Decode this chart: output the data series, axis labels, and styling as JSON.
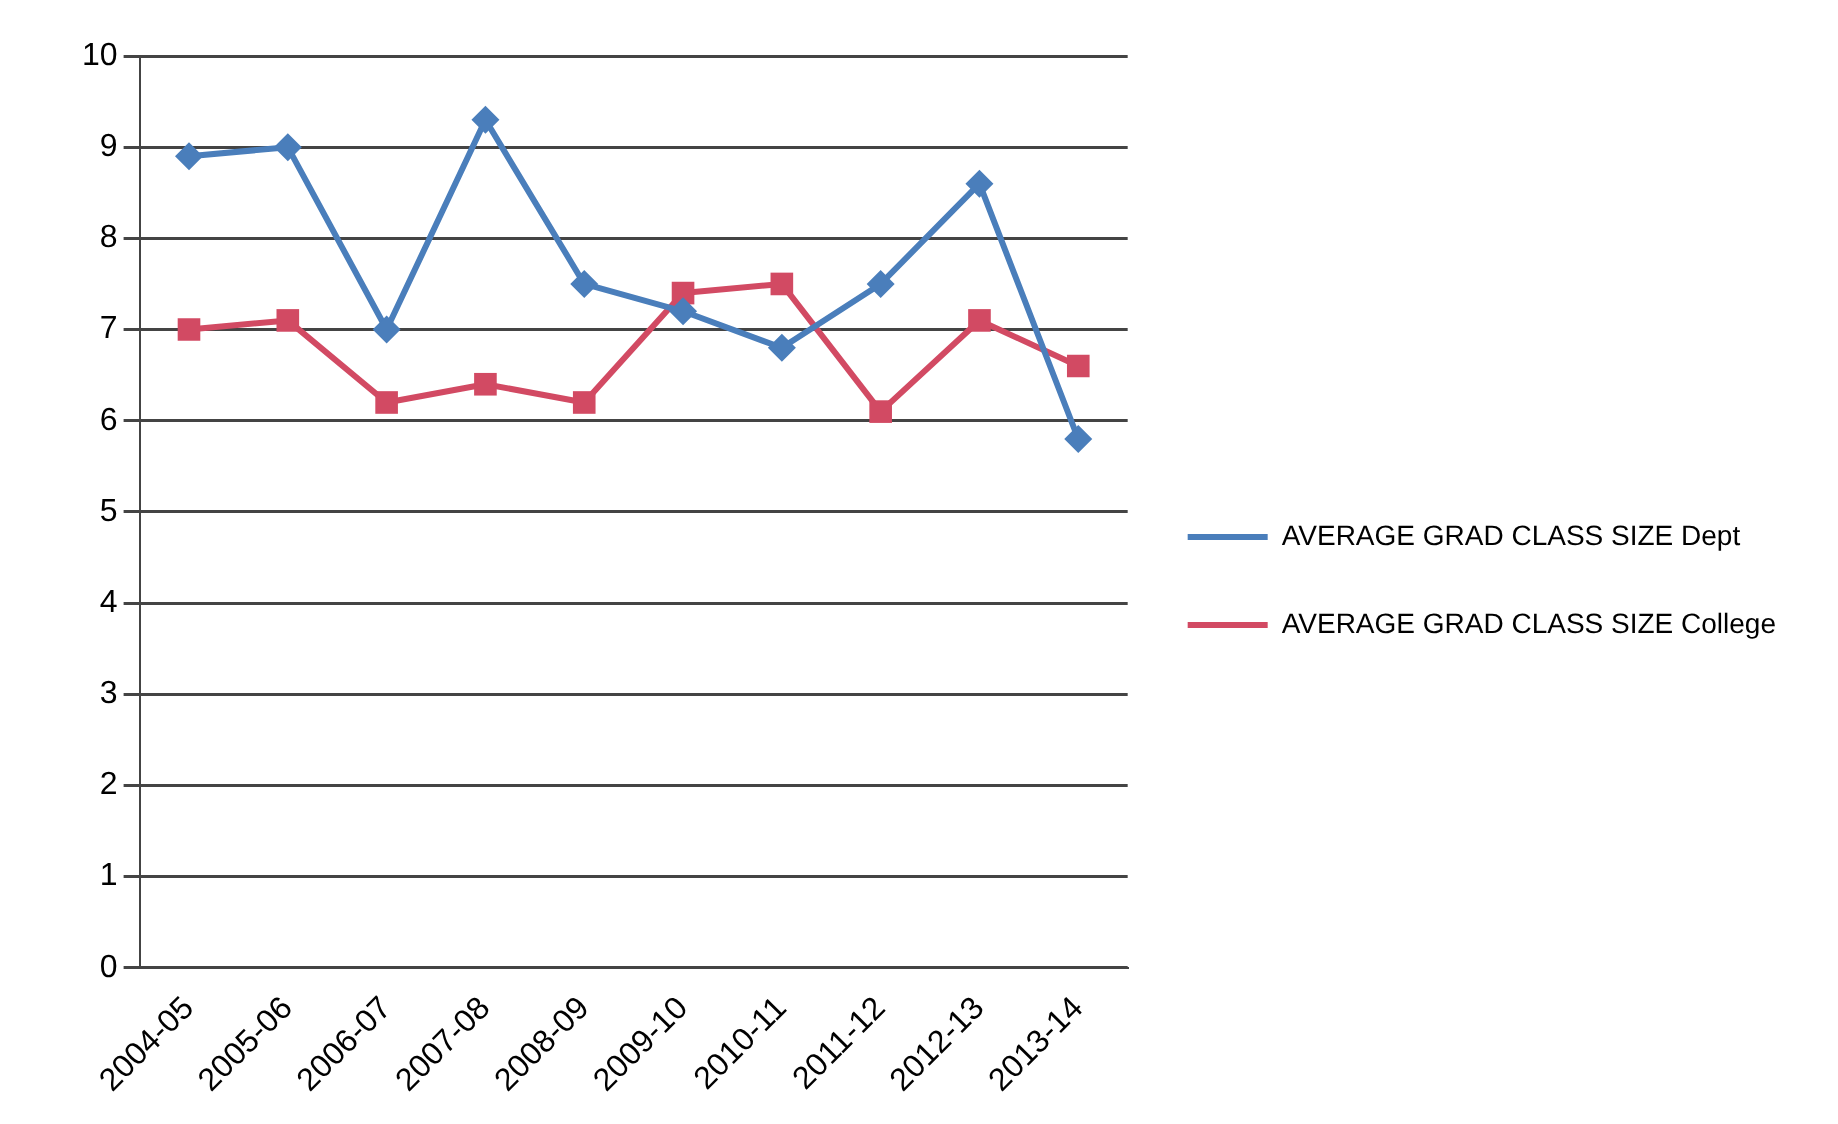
{
  "chart_data": {
    "type": "line",
    "categories": [
      "2004-05",
      "2005-06",
      "2006-07",
      "2007-08",
      "2008-09",
      "2009-10",
      "2010-11",
      "2011-12",
      "2012-13",
      "2013-14"
    ],
    "series": [
      {
        "name": "AVERAGE GRAD CLASS SIZE Dept",
        "color": "#4a7ebb",
        "marker": "diamond",
        "values": [
          8.9,
          9.0,
          7.0,
          9.3,
          7.5,
          7.2,
          6.8,
          7.5,
          8.6,
          5.8
        ]
      },
      {
        "name": "AVERAGE GRAD CLASS SIZE College",
        "color": "#d24a63",
        "marker": "square",
        "values": [
          7.0,
          7.1,
          6.2,
          6.4,
          6.2,
          7.4,
          7.5,
          6.1,
          7.1,
          6.6
        ]
      }
    ],
    "ylim": [
      0,
      10
    ],
    "yticks": [
      0,
      1,
      2,
      3,
      4,
      5,
      6,
      7,
      8,
      9,
      10
    ],
    "grid": "y",
    "legend": "right",
    "line_style": "solid"
  }
}
